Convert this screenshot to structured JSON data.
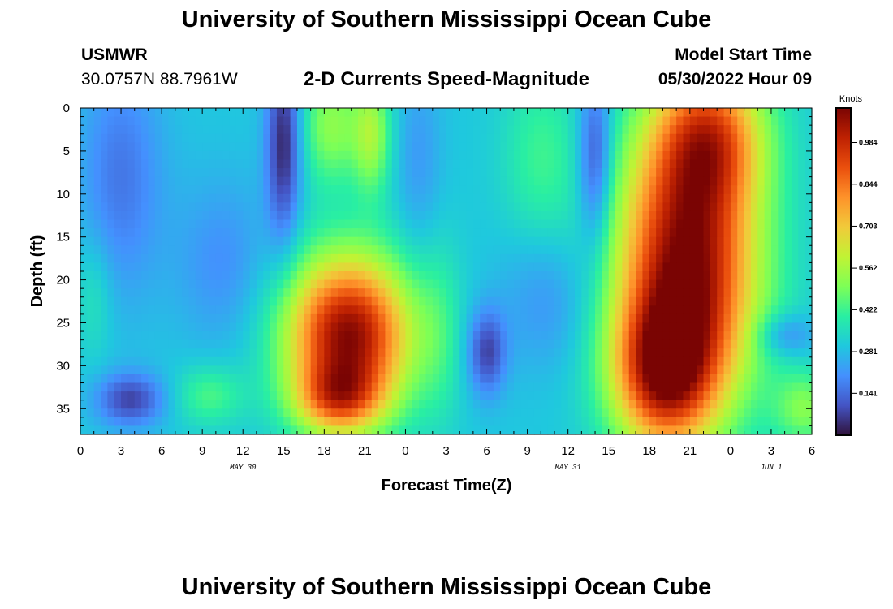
{
  "header": {
    "title": "University of Southern Mississippi Ocean Cube",
    "station_id": "USMWR",
    "station_coords": "30.0757N  88.7961W",
    "plot_title": "2-D Currents Speed-Magnitude",
    "model_start_label": "Model Start Time",
    "model_start_value": "05/30/2022 Hour 09"
  },
  "footer": {
    "title": "University of Southern Mississippi Ocean Cube"
  },
  "chart_data": {
    "type": "heatmap",
    "title": "2-D Currents Speed-Magnitude",
    "xlabel": "Forecast Time(Z)",
    "ylabel": "Depth (ft)",
    "x_range_hours": [
      0,
      54
    ],
    "y_range_ft": [
      0,
      38
    ],
    "y_inverted": true,
    "x_tick_labels": [
      "0",
      "3",
      "6",
      "9",
      "12",
      "15",
      "18",
      "21",
      "0",
      "3",
      "6",
      "9",
      "12",
      "15",
      "18",
      "21",
      "0",
      "3",
      "6"
    ],
    "y_tick_labels": [
      "0",
      "5",
      "10",
      "15",
      "20",
      "25",
      "30",
      "35"
    ],
    "date_labels": [
      {
        "text": "MAY 30",
        "x_hour": 12
      },
      {
        "text": "MAY 31",
        "x_hour": 36
      },
      {
        "text": "JUN 1",
        "x_hour": 51
      }
    ],
    "colorbar": {
      "unit": "Knots",
      "tick_labels": [
        "0.984",
        "0.844",
        "0.703",
        "0.562",
        "0.422",
        "0.281",
        "0.141"
      ],
      "tick_values": [
        0.984,
        0.844,
        0.703,
        0.562,
        0.422,
        0.281,
        0.141
      ],
      "range": [
        0.0,
        1.1
      ],
      "colors": [
        "#30123b",
        "#4454c4",
        "#4490fe",
        "#1fc8de",
        "#29efa2",
        "#7dff56",
        "#c1f334",
        "#f1ca3a",
        "#fe922a",
        "#ea4f0d",
        "#be2102",
        "#7a0403"
      ]
    },
    "field": {
      "baseline_knots": 0.3,
      "features": [
        {
          "x_hour": 19.8,
          "y_ft": 26.5,
          "sx_hours": 3.2,
          "sy_ft": 6.5,
          "amp_knots": 0.78
        },
        {
          "x_hour": 19.0,
          "y_ft": 34.0,
          "sx_hours": 2.2,
          "sy_ft": 2.8,
          "amp_knots": 0.35
        },
        {
          "x_hour": 21.5,
          "y_ft": 3.0,
          "sx_hours": 1.0,
          "sy_ft": 5.0,
          "amp_knots": 0.25
        },
        {
          "x_hour": 18.5,
          "y_ft": 2.0,
          "sx_hours": 1.5,
          "sy_ft": 5.0,
          "amp_knots": 0.22
        },
        {
          "x_hour": 44.8,
          "y_ft": 18.5,
          "sx_hours": 3.6,
          "sy_ft": 11.5,
          "amp_knots": 0.8
        },
        {
          "x_hour": 43.0,
          "y_ft": 31.0,
          "sx_hours": 2.6,
          "sy_ft": 6.0,
          "amp_knots": 0.55
        },
        {
          "x_hour": 46.5,
          "y_ft": 3.0,
          "sx_hours": 2.8,
          "sy_ft": 6.0,
          "amp_knots": 0.45
        },
        {
          "x_hour": 53.5,
          "y_ft": 35.0,
          "sx_hours": 1.6,
          "sy_ft": 3.0,
          "amp_knots": 0.2
        },
        {
          "x_hour": 15.0,
          "y_ft": 4.0,
          "sx_hours": 0.9,
          "sy_ft": 8.0,
          "amp_knots": -0.27
        },
        {
          "x_hour": 3.7,
          "y_ft": 34.0,
          "sx_hours": 1.8,
          "sy_ft": 2.2,
          "amp_knots": -0.22
        },
        {
          "x_hour": 3.0,
          "y_ft": 8.0,
          "sx_hours": 2.2,
          "sy_ft": 10.0,
          "amp_knots": -0.14
        },
        {
          "x_hour": 30.0,
          "y_ft": 28.5,
          "sx_hours": 1.0,
          "sy_ft": 3.5,
          "amp_knots": -0.22
        },
        {
          "x_hour": 38.0,
          "y_ft": 6.0,
          "sx_hours": 0.9,
          "sy_ft": 7.0,
          "amp_knots": -0.24
        },
        {
          "x_hour": 52.0,
          "y_ft": 26.5,
          "sx_hours": 1.5,
          "sy_ft": 1.8,
          "amp_knots": -0.14
        },
        {
          "x_hour": 34.5,
          "y_ft": 22.0,
          "sx_hours": 2.5,
          "sy_ft": 6.0,
          "amp_knots": -0.1
        },
        {
          "x_hour": 10.5,
          "y_ft": 18.0,
          "sx_hours": 2.5,
          "sy_ft": 7.0,
          "amp_knots": -0.1
        },
        {
          "x_hour": 25.0,
          "y_ft": 6.0,
          "sx_hours": 1.2,
          "sy_ft": 8.0,
          "amp_knots": -0.08
        },
        {
          "x_hour": 9.5,
          "y_ft": 33.5,
          "sx_hours": 1.8,
          "sy_ft": 2.5,
          "amp_knots": 0.14
        },
        {
          "x_hour": 1.0,
          "y_ft": 22.0,
          "sx_hours": 1.0,
          "sy_ft": 5.0,
          "amp_knots": 0.08
        },
        {
          "x_hour": 34.0,
          "y_ft": 6.0,
          "sx_hours": 2.0,
          "sy_ft": 8.0,
          "amp_knots": 0.12
        },
        {
          "x_hour": 26.5,
          "y_ft": 26.0,
          "sx_hours": 1.2,
          "sy_ft": 8.0,
          "amp_knots": 0.08
        }
      ]
    }
  }
}
